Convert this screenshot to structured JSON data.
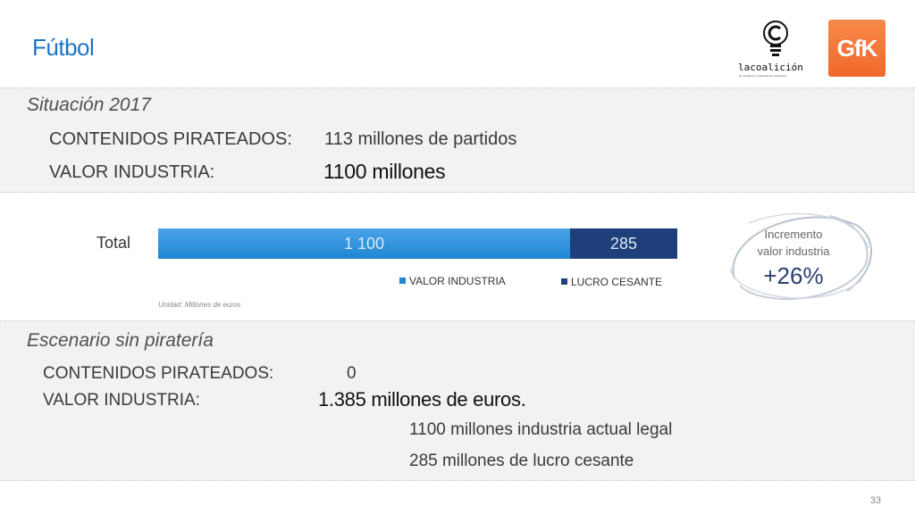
{
  "slide": {
    "title": "Fútbol",
    "page_number": "33"
  },
  "logos": {
    "coalicion_name": "lacoalición",
    "coalicion_tagline": "de creadores e industrias de contenidos",
    "gfk": "GfK"
  },
  "situacion": {
    "heading": "Situación 2017",
    "row1_label": "CONTENIDOS PIRATEADOS:",
    "row1_value": "113 millones de partidos",
    "row2_label": "VALOR INDUSTRIA:",
    "row2_value": "1100 millones"
  },
  "chart": {
    "row_label": "Total",
    "unit_note": "Unidad: Millones de euros"
  },
  "chart_data": {
    "type": "bar",
    "orientation": "horizontal-stacked",
    "categories": [
      "Total"
    ],
    "series": [
      {
        "name": "VALOR INDUSTRIA",
        "values": [
          1100
        ],
        "label": "1 100",
        "color": "#1e86d4"
      },
      {
        "name": "LUCRO CESANTE",
        "values": [
          285
        ],
        "label": "285",
        "color": "#1f3f7a"
      }
    ]
  },
  "incremento": {
    "line1": "Incremento",
    "line2": "valor industria",
    "value": "+26%"
  },
  "escenario": {
    "heading": "Escenario sin piratería",
    "row1_label": "CONTENIDOS PIRATEADOS:",
    "row1_value": "0",
    "row2_label": "VALOR INDUSTRIA:",
    "row2_value": "1.385 millones de euros.",
    "detail1": "1100 millones industria actual legal",
    "detail2": "285 millones de lucro cesante"
  }
}
